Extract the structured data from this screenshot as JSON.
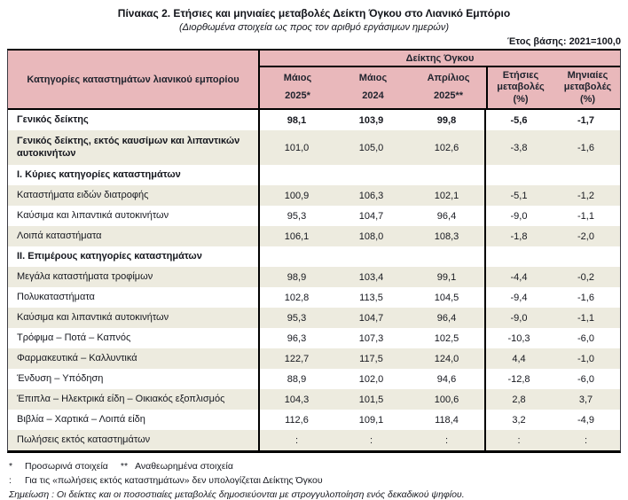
{
  "title": "Πίνακας 2. Ετήσιες και μηνιαίες μεταβολές Δείκτη Όγκου στο Λιανικό Εμπόριο",
  "subtitle": "(Διορθωμένα στοιχεία ως προς τον αριθμό εργάσιμων ημερών)",
  "base_year": "Έτος βάσης: 2021=100,0",
  "colors": {
    "header_pink": "#e9b8bb",
    "row_beige": "#edebdf",
    "border_black": "#000000",
    "text_dark": "#16181f"
  },
  "table": {
    "category_header": "Κατηγορίες καταστημάτων λιανικού εμπορίου",
    "group_header": "Δείκτης Όγκου",
    "columns": [
      {
        "lines": [
          "Μάιος",
          "2025*"
        ]
      },
      {
        "lines": [
          "Μάιος",
          "2024"
        ]
      },
      {
        "lines": [
          "Απρίλιος",
          "2025**"
        ]
      },
      {
        "lines": [
          "Ετήσιες",
          "μεταβολές",
          "(%)"
        ]
      },
      {
        "lines": [
          "Μηνιαίες",
          "μεταβολές",
          "(%)"
        ]
      }
    ],
    "rows": [
      {
        "type": "data",
        "label": "Γενικός δείκτης",
        "values": [
          "98,1",
          "103,9",
          "99,8",
          "-5,6",
          "-1,7"
        ],
        "bold": true,
        "bold_values": true,
        "shaded": false,
        "tall": false
      },
      {
        "type": "data",
        "label": "Γενικός δείκτης, εκτός καυσίμων και λιπαντικών αυτοκινήτων",
        "values": [
          "101,0",
          "105,0",
          "102,6",
          "-3,8",
          "-1,6"
        ],
        "bold": true,
        "bold_values": false,
        "shaded": true,
        "tall": true
      },
      {
        "type": "section",
        "label": "Ι. Κύριες κατηγορίες καταστημάτων",
        "values": [
          "",
          "",
          "",
          "",
          ""
        ],
        "bold": true,
        "bold_values": false,
        "shaded": false,
        "tall": false
      },
      {
        "type": "data",
        "label": "Καταστήματα ειδών διατροφής",
        "values": [
          "100,9",
          "106,3",
          "102,1",
          "-5,1",
          "-1,2"
        ],
        "bold": false,
        "bold_values": false,
        "shaded": true,
        "tall": false
      },
      {
        "type": "data",
        "label": "Καύσιμα και λιπαντικά αυτοκινήτων",
        "values": [
          "95,3",
          "104,7",
          "96,4",
          "-9,0",
          "-1,1"
        ],
        "bold": false,
        "bold_values": false,
        "shaded": false,
        "tall": false
      },
      {
        "type": "data",
        "label": "Λοιπά καταστήματα",
        "values": [
          "106,1",
          "108,0",
          "108,3",
          "-1,8",
          "-2,0"
        ],
        "bold": false,
        "bold_values": false,
        "shaded": true,
        "tall": false
      },
      {
        "type": "section",
        "label": "ΙΙ. Επιμέρους κατηγορίες καταστημάτων",
        "values": [
          "",
          "",
          "",
          "",
          ""
        ],
        "bold": true,
        "bold_values": false,
        "shaded": false,
        "tall": false
      },
      {
        "type": "data",
        "label": "Μεγάλα καταστήματα τροφίμων",
        "values": [
          "98,9",
          "103,4",
          "99,1",
          "-4,4",
          "-0,2"
        ],
        "bold": false,
        "bold_values": false,
        "shaded": true,
        "tall": false
      },
      {
        "type": "data",
        "label": "Πολυκαταστήματα",
        "values": [
          "102,8",
          "113,5",
          "104,5",
          "-9,4",
          "-1,6"
        ],
        "bold": false,
        "bold_values": false,
        "shaded": false,
        "tall": false
      },
      {
        "type": "data",
        "label": "Καύσιμα και λιπαντικά αυτοκινήτων",
        "values": [
          "95,3",
          "104,7",
          "96,4",
          "-9,0",
          "-1,1"
        ],
        "bold": false,
        "bold_values": false,
        "shaded": true,
        "tall": false
      },
      {
        "type": "data",
        "label": "Τρόφιμα – Ποτά – Καπνός",
        "values": [
          "96,3",
          "107,3",
          "102,5",
          "-10,3",
          "-6,0"
        ],
        "bold": false,
        "bold_values": false,
        "shaded": false,
        "tall": false
      },
      {
        "type": "data",
        "label": "Φαρμακευτικά – Καλλυντικά",
        "values": [
          "122,7",
          "117,5",
          "124,0",
          "4,4",
          "-1,0"
        ],
        "bold": false,
        "bold_values": false,
        "shaded": true,
        "tall": false
      },
      {
        "type": "data",
        "label": "Ένδυση – Υπόδηση",
        "values": [
          "88,9",
          "102,0",
          "94,6",
          "-12,8",
          "-6,0"
        ],
        "bold": false,
        "bold_values": false,
        "shaded": false,
        "tall": false
      },
      {
        "type": "data",
        "label": "Έπιπλα – Ηλεκτρικά είδη – Οικιακός εξοπλισμός",
        "values": [
          "104,3",
          "101,5",
          "100,6",
          "2,8",
          "3,7"
        ],
        "bold": false,
        "bold_values": false,
        "shaded": true,
        "tall": false
      },
      {
        "type": "data",
        "label": "Βιβλία – Χαρτικά – Λοιπά είδη",
        "values": [
          "112,6",
          "109,1",
          "118,4",
          "3,2",
          "-4,9"
        ],
        "bold": false,
        "bold_values": false,
        "shaded": false,
        "tall": false
      },
      {
        "type": "data",
        "label": "Πωλήσεις εκτός καταστημάτων",
        "values": [
          ":",
          ":",
          ":",
          ":",
          ":"
        ],
        "bold": false,
        "bold_values": false,
        "shaded": true,
        "tall": false
      }
    ]
  },
  "footnotes": {
    "line1_marker": "*",
    "line1_text": "Προσωρινά στοιχεία",
    "line1b_marker": "**",
    "line1b_text": "Αναθεωρημένα στοιχεία",
    "line2_marker": ":",
    "line2_text": "Για τις «πωλήσεις εκτός καταστημάτων» δεν υπολογίζεται Δείκτης Όγκου",
    "note": "Σημείωση : Οι δείκτες και οι ποσοστιαίες μεταβολές δημοσιεύονται με στρογγυλοποίηση ενός δεκαδικού ψηφίου."
  }
}
